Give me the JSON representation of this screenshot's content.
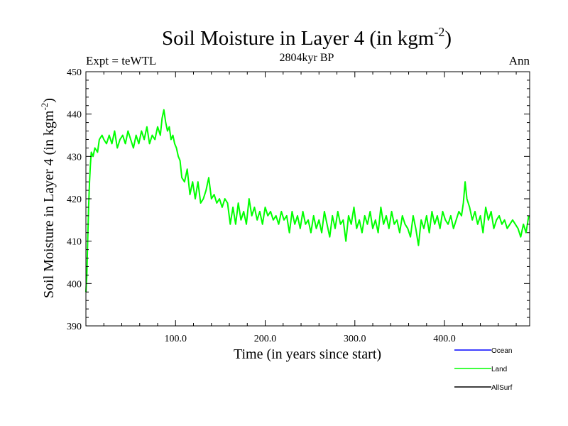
{
  "chart_data": {
    "type": "line",
    "title": "Soil Moisture in Layer 4 (in kgm",
    "title_sup": "-2",
    "title_tail": ")",
    "subtitle": "2804kyr BP",
    "left_label": "Expt = teWTL",
    "right_label": "Ann",
    "xlabel": "Time (in years since start)",
    "ylabel": "Soil Moisture in Layer 4 (in kgm",
    "ylabel_sup": "-2",
    "ylabel_tail": ")",
    "xlim": [
      0,
      495
    ],
    "ylim": [
      390,
      450
    ],
    "x_ticks": [
      100,
      200,
      300,
      400
    ],
    "x_tick_labels": [
      "100.0",
      "200.0",
      "300.0",
      "400.0"
    ],
    "y_ticks": [
      390,
      400,
      410,
      420,
      430,
      440,
      450
    ],
    "y_tick_labels": [
      "390",
      "400",
      "410",
      "420",
      "430",
      "440",
      "450"
    ],
    "series": [
      {
        "name": "Ocean",
        "color": "#0000ff",
        "x": [],
        "values": []
      },
      {
        "name": "Land",
        "color": "#00ff00",
        "x": [
          0,
          1,
          2,
          3,
          4,
          5,
          6,
          8,
          10,
          13,
          15,
          18,
          20,
          23,
          26,
          29,
          32,
          35,
          38,
          41,
          44,
          47,
          50,
          53,
          56,
          59,
          62,
          65,
          68,
          71,
          74,
          77,
          80,
          83,
          85,
          87,
          89,
          91,
          93,
          95,
          97,
          99,
          101,
          103,
          105,
          107,
          110,
          113,
          116,
          119,
          122,
          125,
          128,
          131,
          134,
          137,
          140,
          143,
          146,
          149,
          152,
          155,
          158,
          161,
          164,
          167,
          170,
          173,
          176,
          179,
          182,
          185,
          188,
          191,
          194,
          197,
          200,
          203,
          206,
          209,
          212,
          215,
          218,
          221,
          224,
          227,
          230,
          233,
          236,
          239,
          242,
          245,
          248,
          251,
          254,
          257,
          260,
          263,
          266,
          269,
          272,
          275,
          278,
          281,
          284,
          287,
          290,
          293,
          296,
          299,
          302,
          305,
          308,
          311,
          314,
          317,
          320,
          323,
          326,
          329,
          332,
          335,
          338,
          341,
          344,
          347,
          350,
          353,
          356,
          359,
          362,
          365,
          368,
          371,
          374,
          377,
          380,
          383,
          386,
          389,
          392,
          395,
          398,
          401,
          404,
          407,
          410,
          413,
          416,
          419,
          421,
          423,
          425,
          428,
          431,
          434,
          437,
          440,
          443,
          446,
          449,
          452,
          455,
          458,
          461,
          464,
          467,
          470,
          473,
          476,
          479,
          482,
          485,
          488,
          491,
          494
        ],
        "values": [
          398,
          402,
          410,
          418,
          424,
          428,
          431,
          430,
          432,
          431,
          434,
          435,
          434,
          433,
          435,
          433,
          436,
          432,
          434,
          435,
          433,
          436,
          434,
          432,
          435,
          433,
          436,
          434,
          437,
          433,
          435,
          434,
          437,
          435,
          439,
          441,
          438,
          436,
          437,
          434,
          435,
          433,
          432,
          430,
          429,
          425,
          424,
          427,
          421,
          424,
          420,
          424,
          419,
          420,
          422,
          425,
          420,
          421,
          419,
          420,
          418,
          420,
          419,
          414,
          418,
          414,
          419,
          415,
          417,
          414,
          420,
          416,
          418,
          415,
          417,
          414,
          418,
          416,
          417,
          415,
          416,
          414,
          417,
          415,
          416,
          412,
          417,
          414,
          416,
          413,
          417,
          414,
          415,
          412,
          416,
          413,
          415,
          412,
          417,
          414,
          411,
          416,
          413,
          417,
          414,
          415,
          410,
          416,
          414,
          418,
          413,
          415,
          412,
          416,
          414,
          417,
          413,
          415,
          412,
          418,
          414,
          416,
          413,
          417,
          414,
          415,
          412,
          416,
          414,
          413,
          411,
          416,
          413,
          409,
          415,
          413,
          416,
          412,
          417,
          414,
          416,
          413,
          417,
          415,
          414,
          416,
          413,
          415,
          417,
          416,
          419,
          424,
          420,
          418,
          415,
          417,
          414,
          416,
          412,
          418,
          415,
          417,
          413,
          415,
          416,
          414,
          415,
          413,
          414,
          415,
          414,
          413,
          411,
          414,
          412,
          416
        ]
      },
      {
        "name": "AllSurf",
        "color": "#000000",
        "x": [],
        "values": []
      }
    ],
    "legend_position": "bottom-right"
  }
}
